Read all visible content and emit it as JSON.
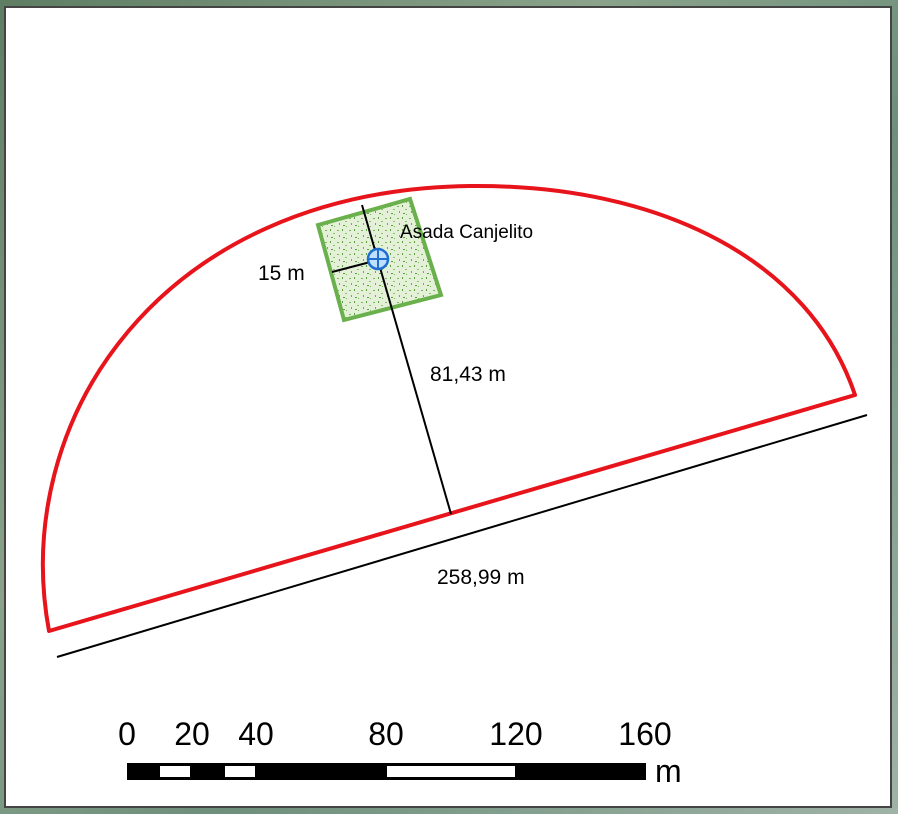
{
  "map": {
    "site_label": "Asada Canjelito",
    "radius_label": "15 m",
    "depth_label": "81,43 m",
    "base_label": "258,99 m",
    "colors": {
      "boundary": "#e8141b",
      "well_zone": "#6ab04c",
      "well_fill": "#d8ecc8",
      "well_marker": "#1f6fd1",
      "lines": "#000000"
    },
    "icons": [
      "well-marker-icon"
    ]
  },
  "scale_bar": {
    "ticks": [
      "0",
      "20",
      "40",
      "80",
      "120",
      "160"
    ],
    "unit": "m"
  }
}
